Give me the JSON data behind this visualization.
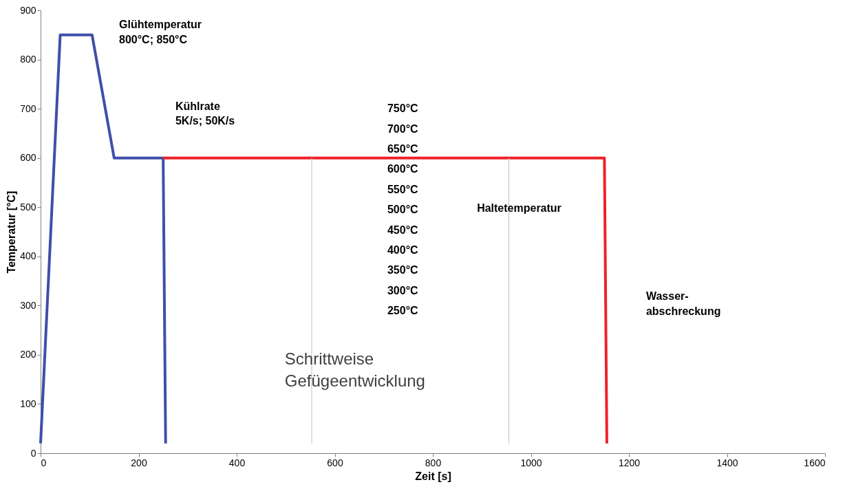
{
  "chart_data": {
    "type": "line",
    "xlabel": "Zeit [s]",
    "ylabel": "Temperatur [°C]",
    "xlim": [
      0,
      1600
    ],
    "xticks": [
      0,
      200,
      400,
      600,
      800,
      1000,
      1200,
      1400,
      1600
    ],
    "ylim": [
      0,
      900
    ],
    "yticks": [
      0,
      100,
      200,
      300,
      400,
      500,
      600,
      700,
      800,
      900
    ],
    "grid": false,
    "legend": false,
    "marker": "none",
    "line_style": "solid",
    "series": [
      {
        "color": "#3f4fa8",
        "x": [
          0,
          40,
          105,
          150,
          250,
          255
        ],
        "values": [
          20,
          850,
          850,
          600,
          600,
          20
        ]
      },
      {
        "color": "#ee2228",
        "x": [
          250,
          1150,
          1155
        ],
        "values": [
          600,
          600,
          20
        ]
      },
      {
        "color": "#c8c8c8",
        "x": [
          553,
          553
        ],
        "values": [
          20,
          600
        ]
      },
      {
        "color": "#c8c8c8",
        "x": [
          955,
          955
        ],
        "values": [
          20,
          600
        ]
      }
    ],
    "annotations": [
      "Glühtemperatur\n800°C; 850°C",
      "Kühlrate\n5K/s; 50K/s",
      "750°C",
      "700°C",
      "650°C",
      "600°C",
      "550°C",
      "500°C",
      "450°C",
      "400°C",
      "350°C",
      "300°C",
      "250°C",
      "Haltetemperatur",
      "Wasser-\nabschreckung",
      "Schrittweise\nGefügeentwicklung"
    ]
  }
}
